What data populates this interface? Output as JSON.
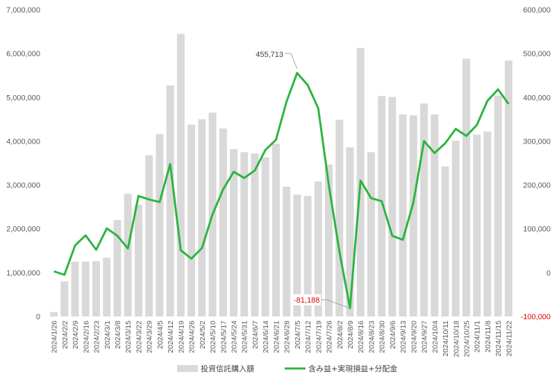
{
  "chart_data": {
    "type": "bar",
    "categories": [
      "2024/1/26",
      "2024/2/2",
      "2024/2/9",
      "2024/2/16",
      "2024/2/23",
      "2024/3/1",
      "2024/3/8",
      "2024/3/15",
      "2024/3/22",
      "2024/3/29",
      "2024/4/5",
      "2024/4/12",
      "2024/4/19",
      "2024/4/26",
      "2024/5/2",
      "2024/5/10",
      "2024/5/17",
      "2024/5/24",
      "2024/5/31",
      "2024/6/7",
      "2024/6/14",
      "2024/6/21",
      "2024/6/28",
      "2024/7/5",
      "2024/7/12",
      "2024/7/19",
      "2024/7/26",
      "2024/8/2",
      "2024/8/9",
      "2024/8/16",
      "2024/8/23",
      "2024/8/30",
      "2024/9/6",
      "2024/9/13",
      "2024/9/20",
      "2024/9/27",
      "2024/10/4",
      "2024/10/11",
      "2024/10/18",
      "2024/10/25",
      "2024/11/1",
      "2024/11/8",
      "2024/11/15",
      "2024/11/22"
    ],
    "series": [
      {
        "name": "投資信託購入額",
        "kind": "bar",
        "axis": "left",
        "color": "#d9d9d9",
        "values": [
          100000,
          800000,
          1250000,
          1250000,
          1260000,
          1340000,
          2200000,
          2800000,
          2550000,
          3680000,
          4160000,
          5270000,
          6450000,
          4380000,
          4500000,
          4650000,
          4290000,
          3820000,
          3750000,
          3720000,
          3630000,
          3940000,
          2960000,
          2780000,
          2750000,
          3080000,
          3470000,
          4490000,
          3860000,
          6130000,
          3750000,
          5030000,
          5010000,
          4610000,
          4590000,
          4860000,
          4610000,
          3420000,
          4010000,
          5880000,
          4150000,
          4220000,
          5040000,
          5840000
        ]
      },
      {
        "name": "含み益+実現損益+分配金",
        "kind": "line",
        "axis": "right",
        "color": "#2db440",
        "values": [
          3000,
          -5000,
          62000,
          85000,
          52000,
          101000,
          84000,
          55000,
          175000,
          167000,
          161000,
          248000,
          51000,
          32000,
          56000,
          133000,
          190000,
          230000,
          216000,
          233000,
          280000,
          303000,
          390000,
          455713,
          428000,
          375000,
          200000,
          48000,
          -81188,
          210000,
          170000,
          163000,
          84000,
          75000,
          160000,
          300000,
          273000,
          295000,
          328000,
          312000,
          337000,
          392000,
          418000,
          385000
        ]
      }
    ],
    "yaxis_left": {
      "min": 0,
      "max": 7000000,
      "ticks": [
        "0",
        "1,000,000",
        "2,000,000",
        "3,000,000",
        "4,000,000",
        "5,000,000",
        "6,000,000",
        "7,000,000"
      ]
    },
    "yaxis_right": {
      "min": -100000,
      "max": 600000,
      "ticks": [
        "-100,000",
        "0",
        "100,000",
        "200,000",
        "300,000",
        "400,000",
        "500,000",
        "600,000"
      ]
    },
    "annotations": [
      {
        "text": "455,713",
        "index": 23,
        "color": "#404040"
      },
      {
        "text": "-81,188",
        "index": 28,
        "color": "#e00000"
      }
    ],
    "negative_tick_color": "#e00000",
    "grid": false,
    "legend_position": "bottom"
  }
}
